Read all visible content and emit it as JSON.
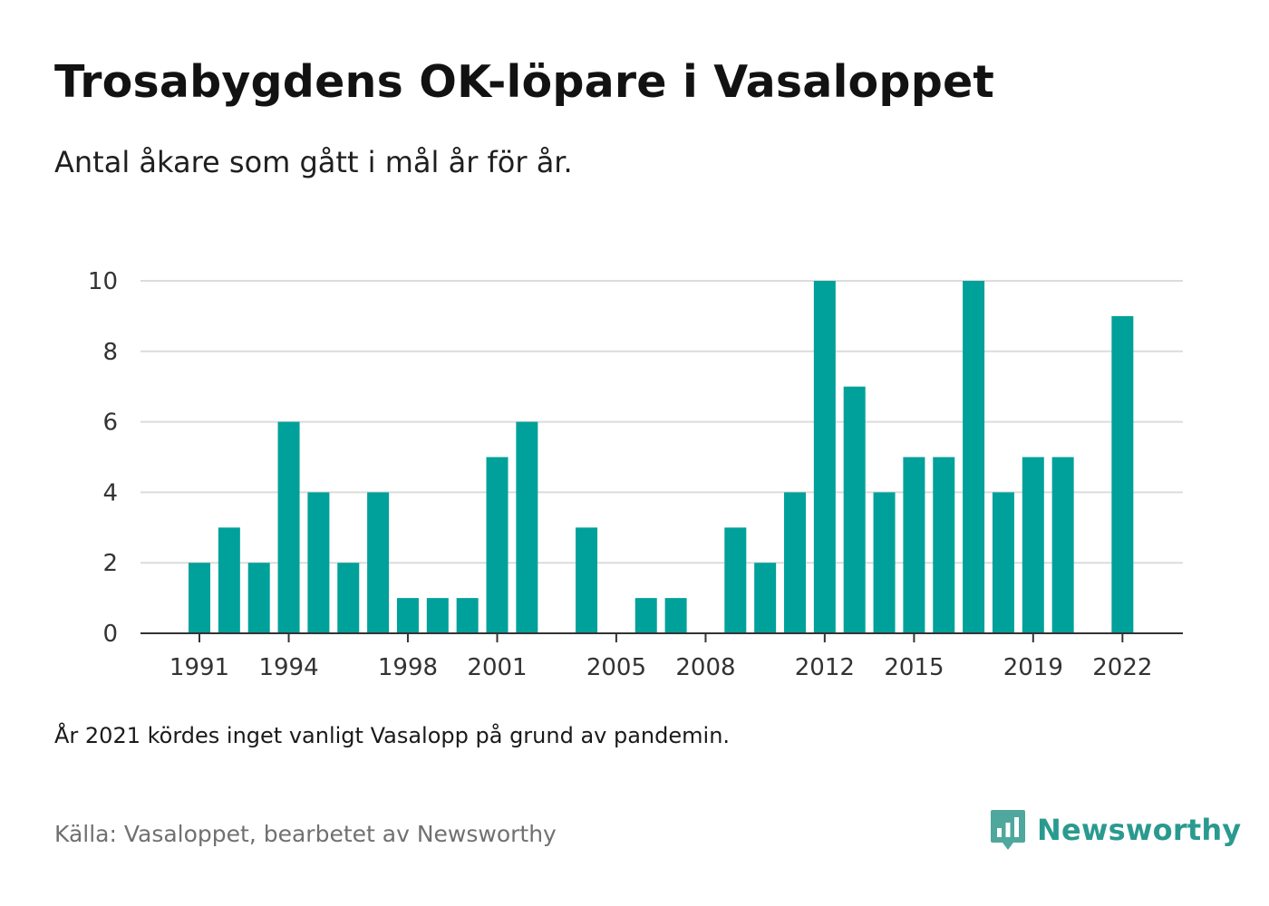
{
  "header": {
    "title": "Trosabygdens OK-löpare i Vasaloppet",
    "subtitle": "Antal åkare som gått i mål år för år."
  },
  "footer": {
    "note": "År 2021 kördes inget vanligt Vasalopp på grund av pandemin.",
    "source": "Källa: Vasaloppet, bearbetet av Newsworthy",
    "logo_text": "Newsworthy",
    "logo_icon": "newsworthy-chart-bubble-icon"
  },
  "colors": {
    "bar": "#00a19a",
    "grid": "#dcdcdc",
    "axis": "#333333",
    "brand": "#2a9a8f"
  },
  "chart_data": {
    "type": "bar",
    "x": [
      1991,
      1992,
      1993,
      1994,
      1995,
      1996,
      1997,
      1998,
      1999,
      2000,
      2001,
      2002,
      2003,
      2004,
      2005,
      2006,
      2007,
      2008,
      2009,
      2010,
      2011,
      2012,
      2013,
      2014,
      2015,
      2016,
      2017,
      2018,
      2019,
      2020,
      2021,
      2022
    ],
    "values": [
      2,
      3,
      2,
      6,
      4,
      2,
      4,
      1,
      1,
      1,
      5,
      6,
      0,
      3,
      0,
      1,
      1,
      0,
      3,
      2,
      4,
      10,
      7,
      4,
      5,
      5,
      10,
      4,
      5,
      5,
      null,
      9
    ],
    "x_tick_labels": [
      "1991",
      "1994",
      "1998",
      "2001",
      "2005",
      "2008",
      "2012",
      "2015",
      "2019",
      "2022"
    ],
    "y_ticks": [
      0,
      2,
      4,
      6,
      8,
      10
    ],
    "ylim": [
      0,
      10
    ],
    "grid": true,
    "xlabel": "",
    "ylabel": ""
  }
}
